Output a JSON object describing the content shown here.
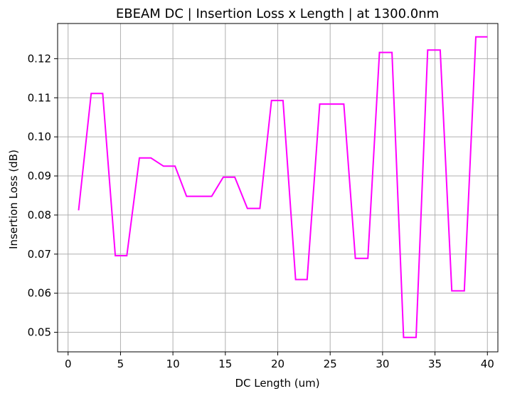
{
  "chart_data": {
    "type": "line",
    "title": "EBEAM DC | Insertion Loss x Length | at 1300.0nm",
    "xlabel": "DC Length (um)",
    "ylabel": "Insertion Loss (dB)",
    "xlim": [
      -1,
      41
    ],
    "ylim": [
      0.045,
      0.129
    ],
    "grid": true,
    "x_ticks": [
      0,
      5,
      10,
      15,
      20,
      25,
      30,
      35,
      40
    ],
    "y_ticks": [
      0.05,
      0.06,
      0.07,
      0.08,
      0.09,
      0.1,
      0.11,
      0.12
    ],
    "x_tick_labels": [
      "0",
      "5",
      "10",
      "15",
      "20",
      "25",
      "30",
      "35",
      "40"
    ],
    "y_tick_labels": [
      "0.05",
      "0.06",
      "0.07",
      "0.08",
      "0.09",
      "0.10",
      "0.11",
      "0.12"
    ],
    "series": [
      {
        "color": "#ff00ff",
        "x": [
          1.0,
          2.2,
          3.3,
          4.5,
          5.6,
          6.8,
          7.9,
          9.1,
          10.2,
          11.3,
          12.5,
          13.7,
          14.8,
          15.9,
          17.1,
          18.3,
          19.4,
          20.5,
          21.7,
          22.8,
          24.0,
          25.1,
          26.3,
          27.4,
          28.6,
          29.7,
          30.9,
          32.0,
          33.2,
          34.3,
          35.5,
          36.6,
          37.8,
          38.9,
          40.0
        ],
        "y": [
          0.0812,
          0.1111,
          0.1111,
          0.0696,
          0.0696,
          0.0946,
          0.0946,
          0.0925,
          0.0925,
          0.0848,
          0.0848,
          0.0848,
          0.0897,
          0.0897,
          0.0817,
          0.0817,
          0.1093,
          0.1093,
          0.0635,
          0.0635,
          0.1084,
          0.1084,
          0.1084,
          0.0689,
          0.0689,
          0.1216,
          0.1216,
          0.0487,
          0.0487,
          0.1222,
          0.1222,
          0.0606,
          0.0606,
          0.1256,
          0.1256
        ]
      }
    ]
  }
}
